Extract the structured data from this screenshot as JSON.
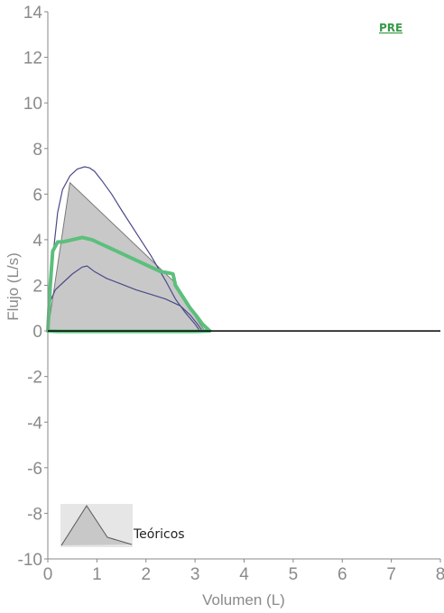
{
  "chart_data": {
    "type": "line",
    "tag": "PRE",
    "xlabel": "Volumen (L)",
    "ylabel": "Flujo (L/s)",
    "xlim": [
      0,
      8
    ],
    "ylim": [
      -10,
      14
    ],
    "x_ticks": [
      "0",
      "1",
      "2",
      "3",
      "4",
      "5",
      "6",
      "7",
      "8"
    ],
    "y_ticks": [
      "-10",
      "-8",
      "-6",
      "-4",
      "-2",
      "0",
      "2",
      "4",
      "6",
      "8",
      "10",
      "12",
      "14"
    ],
    "grid": false,
    "legend": {
      "label": "Teóricos",
      "placement": "bottom-left"
    },
    "colors": {
      "predicted_fill": "#c8c8c8",
      "limits": "#4a4a8a",
      "measured": "#5cbf7c",
      "zero_line": "#000000",
      "axis": "#888888"
    },
    "series": [
      {
        "role": "predicted",
        "type": "area",
        "x": [
          0,
          0.45,
          2.55,
          3.1,
          3.2
        ],
        "y": [
          0,
          6.5,
          2.2,
          0.3,
          0
        ]
      },
      {
        "role": "upper_limit",
        "type": "line",
        "x": [
          0,
          0.1,
          0.2,
          0.3,
          0.45,
          0.6,
          0.75,
          0.85,
          0.95,
          1.1,
          1.3,
          1.5,
          1.8,
          2.1,
          2.4,
          2.6,
          2.8,
          3.0,
          3.1
        ],
        "y": [
          0,
          3.2,
          5.2,
          6.2,
          6.8,
          7.1,
          7.2,
          7.15,
          7.0,
          6.6,
          6.0,
          5.3,
          4.3,
          3.3,
          2.2,
          1.4,
          0.8,
          0.3,
          0
        ]
      },
      {
        "role": "lower_limit",
        "type": "line",
        "x": [
          0,
          0.05,
          0.15,
          0.3,
          0.5,
          0.7,
          0.8,
          0.95,
          1.2,
          1.5,
          1.8,
          2.1,
          2.4,
          2.7,
          2.9,
          3.05,
          3.15
        ],
        "y": [
          0,
          1.3,
          1.8,
          2.1,
          2.5,
          2.8,
          2.85,
          2.6,
          2.3,
          2.05,
          1.8,
          1.6,
          1.4,
          1.1,
          0.7,
          0.3,
          0
        ]
      },
      {
        "role": "measured",
        "type": "line",
        "x": [
          0,
          0.05,
          0.1,
          0.2,
          0.3,
          0.5,
          0.7,
          0.9,
          1.1,
          1.3,
          1.5,
          1.7,
          1.9,
          2.1,
          2.3,
          2.45,
          2.55,
          2.6,
          2.75,
          2.9,
          3.05,
          3.15,
          3.25,
          3.3,
          3.0,
          2.0,
          1.0,
          0.2,
          0
        ],
        "y": [
          0,
          2.0,
          3.5,
          3.9,
          3.9,
          4.0,
          4.1,
          4.0,
          3.8,
          3.6,
          3.4,
          3.2,
          3.0,
          2.8,
          2.6,
          2.55,
          2.5,
          2.0,
          1.5,
          1.0,
          0.6,
          0.3,
          0.1,
          0,
          -0.02,
          -0.02,
          -0.02,
          -0.02,
          0
        ]
      }
    ]
  }
}
